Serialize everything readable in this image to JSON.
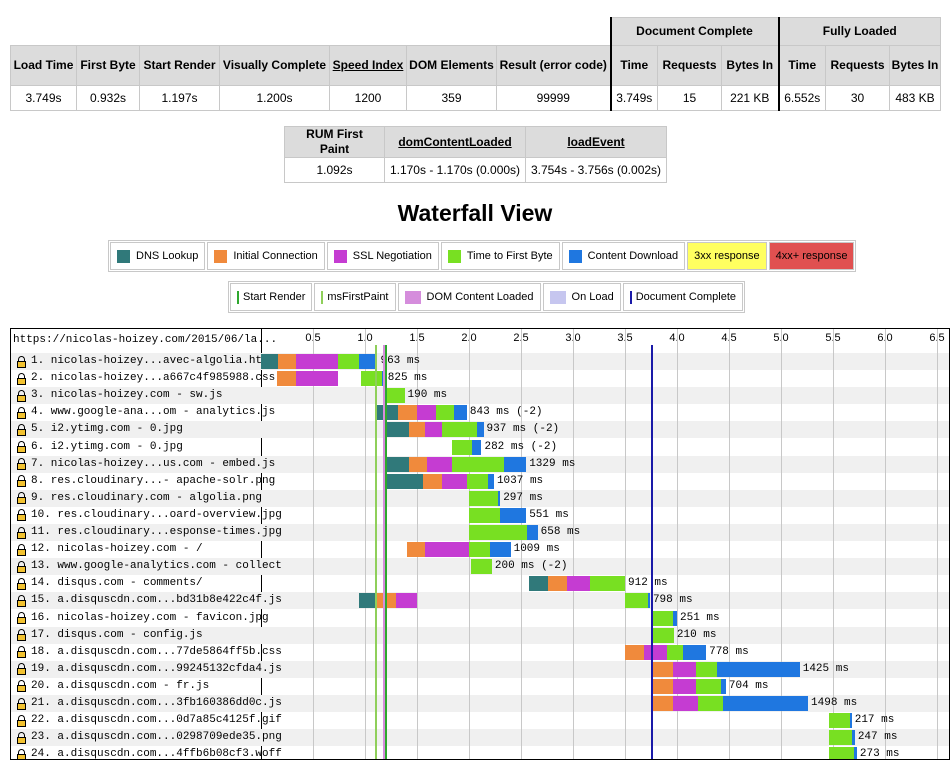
{
  "summary": {
    "group_document_complete": "Document Complete",
    "group_fully_loaded": "Fully Loaded",
    "headers": [
      "Load Time",
      "First Byte",
      "Start Render",
      "Visually Complete",
      "Speed Index",
      "DOM Elements",
      "Result (error code)",
      "Time",
      "Requests",
      "Bytes In",
      "Time",
      "Requests",
      "Bytes In"
    ],
    "values": [
      "3.749s",
      "0.932s",
      "1.197s",
      "1.200s",
      "1200",
      "359",
      "99999",
      "3.749s",
      "15",
      "221 KB",
      "6.552s",
      "30",
      "483 KB"
    ]
  },
  "rum": {
    "headers": [
      "RUM First Paint",
      "domContentLoaded",
      "loadEvent"
    ],
    "values": [
      "1.092s",
      "1.170s - 1.170s (0.000s)",
      "3.754s - 3.756s (0.002s)"
    ]
  },
  "waterfall": {
    "title": "Waterfall View",
    "page_url": "https://nicolas-hoizey.com/2015/06/la...",
    "legend_phases": [
      {
        "label": "DNS Lookup",
        "color": "#30797a"
      },
      {
        "label": "Initial Connection",
        "color": "#f08a3c"
      },
      {
        "label": "SSL Negotiation",
        "color": "#c53cd2"
      },
      {
        "label": "Time to First Byte",
        "color": "#78e022"
      },
      {
        "label": "Content Download",
        "color": "#1f77e0"
      },
      {
        "label": "3xx response",
        "color": "#ffff60"
      },
      {
        "label": "4xx+ response",
        "color": "#e05050"
      }
    ],
    "legend_events": [
      {
        "label": "Start Render",
        "color": "#2ea82e",
        "kind": "line"
      },
      {
        "label": "msFirstPaint",
        "color": "#8fcf5a",
        "kind": "line"
      },
      {
        "label": "DOM Content Loaded",
        "color": "#d58ddc",
        "kind": "box"
      },
      {
        "label": "On Load",
        "color": "#c6c6ef",
        "kind": "box"
      },
      {
        "label": "Document Complete",
        "color": "#1a1aa8",
        "kind": "line"
      }
    ],
    "scale": [
      "0.5",
      "1.0",
      "1.5",
      "2.0",
      "2.5",
      "3.0",
      "3.5",
      "4.0",
      "4.5",
      "5.0",
      "5.5",
      "6.0",
      "6.5"
    ],
    "markers": [
      {
        "name": "ms-first-paint",
        "time": 1.092,
        "color": "#8fcf5a"
      },
      {
        "name": "start-render",
        "time": 1.197,
        "color": "#2ea82e"
      },
      {
        "name": "dom-content-loaded",
        "time": 1.17,
        "color": "#d58ddc"
      },
      {
        "name": "document-complete",
        "time": 3.749,
        "color": "#1a1aa8"
      }
    ],
    "requests": [
      {
        "label": "1. nicolas-hoizey...avec-algolia.html",
        "dur": "963 ms",
        "ssl": true,
        "segs": [
          [
            0.0,
            0.16,
            "dns"
          ],
          [
            0.16,
            0.34,
            "conn"
          ],
          [
            0.34,
            0.74,
            "ssl"
          ],
          [
            0.74,
            0.94,
            "ttfb"
          ],
          [
            0.94,
            1.12,
            "dl"
          ]
        ]
      },
      {
        "label": "2. nicolas-hoizey...a667c4f985988.css",
        "dur": "825 ms",
        "ssl": true,
        "segs": [
          [
            0.15,
            0.34,
            "conn"
          ],
          [
            0.34,
            0.74,
            "ssl"
          ],
          [
            0.96,
            1.16,
            "ttfb"
          ],
          [
            1.16,
            1.19,
            "dl"
          ]
        ]
      },
      {
        "label": "3. nicolas-hoizey.com - sw.js",
        "dur": "190 ms",
        "ssl": true,
        "segs": [
          [
            1.19,
            1.38,
            "ttfb"
          ]
        ]
      },
      {
        "label": "4. www.google-ana...om - analytics.js",
        "dur": "843 ms (-2)",
        "ssl": true,
        "segs": [
          [
            1.12,
            1.32,
            "dns"
          ],
          [
            1.32,
            1.5,
            "conn"
          ],
          [
            1.5,
            1.68,
            "ssl"
          ],
          [
            1.68,
            1.86,
            "ttfb"
          ],
          [
            1.86,
            1.98,
            "dl"
          ]
        ]
      },
      {
        "label": "5. i2.ytimg.com - 0.jpg",
        "dur": "937 ms (-2)",
        "ssl": true,
        "segs": [
          [
            1.2,
            1.42,
            "dns"
          ],
          [
            1.42,
            1.58,
            "conn"
          ],
          [
            1.58,
            1.74,
            "ssl"
          ],
          [
            1.74,
            2.08,
            "ttfb"
          ],
          [
            2.08,
            2.14,
            "dl"
          ]
        ]
      },
      {
        "label": "6. i2.ytimg.com - 0.jpg",
        "dur": "282 ms (-2)",
        "ssl": true,
        "segs": [
          [
            1.84,
            2.03,
            "ttfb"
          ],
          [
            2.03,
            2.12,
            "dl"
          ]
        ]
      },
      {
        "label": "7. nicolas-hoizey...us.com - embed.js",
        "dur": "1329 ms",
        "ssl": true,
        "segs": [
          [
            1.2,
            1.42,
            "dns"
          ],
          [
            1.42,
            1.6,
            "conn"
          ],
          [
            1.6,
            1.84,
            "ssl"
          ],
          [
            1.84,
            2.34,
            "ttfb"
          ],
          [
            2.34,
            2.55,
            "dl"
          ]
        ]
      },
      {
        "label": "8. res.cloudinary...- apache-solr.png",
        "dur": "1037 ms",
        "ssl": true,
        "segs": [
          [
            1.2,
            1.56,
            "dns"
          ],
          [
            1.56,
            1.74,
            "conn"
          ],
          [
            1.74,
            1.98,
            "ssl"
          ],
          [
            1.98,
            2.18,
            "ttfb"
          ],
          [
            2.18,
            2.24,
            "dl"
          ]
        ]
      },
      {
        "label": "9. res.cloudinary.com - algolia.png",
        "dur": "297 ms",
        "ssl": true,
        "segs": [
          [
            2.0,
            2.28,
            "ttfb"
          ],
          [
            2.28,
            2.3,
            "dl"
          ]
        ]
      },
      {
        "label": "10. res.cloudinary...oard-overview.jpg",
        "dur": "551 ms",
        "ssl": true,
        "segs": [
          [
            2.0,
            2.3,
            "ttfb"
          ],
          [
            2.3,
            2.55,
            "dl"
          ]
        ]
      },
      {
        "label": "11. res.cloudinary...esponse-times.jpg",
        "dur": "658 ms",
        "ssl": true,
        "segs": [
          [
            2.0,
            2.56,
            "ttfb"
          ],
          [
            2.56,
            2.66,
            "dl"
          ]
        ]
      },
      {
        "label": "12. nicolas-hoizey.com - /",
        "dur": "1009 ms",
        "ssl": true,
        "segs": [
          [
            1.4,
            1.58,
            "conn"
          ],
          [
            1.58,
            2.0,
            "ssl"
          ],
          [
            2.0,
            2.2,
            "ttfb"
          ],
          [
            2.2,
            2.4,
            "dl"
          ]
        ]
      },
      {
        "label": "13. www.google-analytics.com - collect",
        "dur": "200 ms (-2)",
        "ssl": true,
        "segs": [
          [
            2.02,
            2.22,
            "ttfb"
          ]
        ]
      },
      {
        "label": "14. disqus.com - comments/",
        "dur": "912 ms",
        "ssl": true,
        "segs": [
          [
            2.58,
            2.76,
            "dns"
          ],
          [
            2.76,
            2.94,
            "conn"
          ],
          [
            2.94,
            3.16,
            "ssl"
          ],
          [
            3.16,
            3.5,
            "ttfb"
          ]
        ]
      },
      {
        "label": "15. a.disquscdn.com...bd31b8e422c4f.js",
        "dur": "798 ms",
        "ssl": true,
        "segs": [
          [
            0.94,
            1.12,
            "dns"
          ],
          [
            1.12,
            1.3,
            "conn"
          ],
          [
            1.3,
            1.5,
            "ssl"
          ],
          [
            3.5,
            3.72,
            "ttfb"
          ],
          [
            3.72,
            3.74,
            "dl"
          ]
        ]
      },
      {
        "label": "16. nicolas-hoizey.com - favicon.jpg",
        "dur": "251 ms",
        "ssl": true,
        "segs": [
          [
            3.76,
            3.96,
            "ttfb"
          ],
          [
            3.96,
            4.0,
            "dl"
          ]
        ]
      },
      {
        "label": "17. disqus.com - config.js",
        "dur": "210 ms",
        "ssl": true,
        "segs": [
          [
            3.76,
            3.97,
            "ttfb"
          ]
        ]
      },
      {
        "label": "18. a.disquscdn.com...77de5864ff5b.css",
        "dur": "778 ms",
        "ssl": true,
        "segs": [
          [
            3.5,
            3.68,
            "conn"
          ],
          [
            3.68,
            3.9,
            "ssl"
          ],
          [
            3.9,
            4.06,
            "ttfb"
          ],
          [
            4.06,
            4.28,
            "dl"
          ]
        ]
      },
      {
        "label": "19. a.disquscdn.com...99245132cfda4.js",
        "dur": "1425 ms",
        "ssl": true,
        "segs": [
          [
            3.76,
            3.96,
            "conn"
          ],
          [
            3.96,
            4.18,
            "ssl"
          ],
          [
            4.18,
            4.38,
            "ttfb"
          ],
          [
            4.38,
            5.18,
            "dl"
          ]
        ]
      },
      {
        "label": "20. a.disquscdn.com - fr.js",
        "dur": "704 ms",
        "ssl": true,
        "segs": [
          [
            3.76,
            3.96,
            "conn"
          ],
          [
            3.96,
            4.18,
            "ssl"
          ],
          [
            4.18,
            4.42,
            "ttfb"
          ],
          [
            4.42,
            4.47,
            "dl"
          ]
        ]
      },
      {
        "label": "21. a.disquscdn.com...3fb160386dd0c.js",
        "dur": "1498 ms",
        "ssl": true,
        "segs": [
          [
            3.76,
            3.96,
            "conn"
          ],
          [
            3.96,
            4.2,
            "ssl"
          ],
          [
            4.2,
            4.44,
            "ttfb"
          ],
          [
            4.44,
            5.26,
            "dl"
          ]
        ]
      },
      {
        "label": "22. a.disquscdn.com...0d7a85c4125f.gif",
        "dur": "217 ms",
        "ssl": true,
        "segs": [
          [
            5.46,
            5.66,
            "ttfb"
          ],
          [
            5.66,
            5.68,
            "dl"
          ]
        ]
      },
      {
        "label": "23. a.disquscdn.com...0298709ede35.png",
        "dur": "247 ms",
        "ssl": true,
        "segs": [
          [
            5.46,
            5.68,
            "ttfb"
          ],
          [
            5.68,
            5.71,
            "dl"
          ]
        ]
      },
      {
        "label": "24. a.disquscdn.com...4ffb6b08cf3.woff",
        "dur": "273 ms",
        "ssl": true,
        "segs": [
          [
            5.46,
            5.7,
            "ttfb"
          ],
          [
            5.7,
            5.73,
            "dl"
          ]
        ]
      }
    ]
  }
}
